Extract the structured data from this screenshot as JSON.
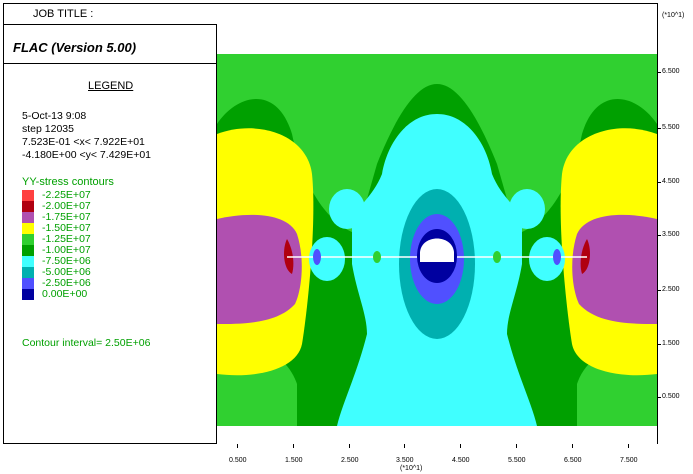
{
  "header": {
    "job_title": "JOB TITLE :"
  },
  "program": {
    "title": "FLAC (Version 5.00)"
  },
  "legend": {
    "title": "LEGEND",
    "date": "5-Oct-13  9:08",
    "step": "step    12035",
    "x_range": "7.523E-01 <x< 7.922E+01",
    "y_range": "-4.180E+00 <y< 7.429E+01",
    "contour_title": "YY-stress contours",
    "items": [
      {
        "label": "-2.25E+07",
        "color": "#ff4040"
      },
      {
        "label": "-2.00E+07",
        "color": "#b00010"
      },
      {
        "label": "-1.75E+07",
        "color": "#b050b0"
      },
      {
        "label": "-1.50E+07",
        "color": "#ffff00"
      },
      {
        "label": "-1.25E+07",
        "color": "#30d030"
      },
      {
        "label": "-1.00E+07",
        "color": "#00a000"
      },
      {
        "label": "-7.50E+06",
        "color": "#40ffff"
      },
      {
        "label": "-5.00E+06",
        "color": "#00b0b0"
      },
      {
        "label": "-2.50E+06",
        "color": "#5050ff"
      },
      {
        "label": "0.00E+00",
        "color": "#0000a0"
      }
    ],
    "interval": "Contour interval= 2.50E+06"
  },
  "axes": {
    "y_multiplier": "(*10^1)",
    "y_ticks": [
      "6.500",
      "5.500",
      "4.500",
      "3.500",
      "2.500",
      "1.500",
      "0.500"
    ],
    "x_multiplier": "(*10^1)",
    "x_ticks": [
      "0.500",
      "1.500",
      "2.500",
      "3.500",
      "4.500",
      "5.500",
      "6.500",
      "7.500"
    ]
  }
}
